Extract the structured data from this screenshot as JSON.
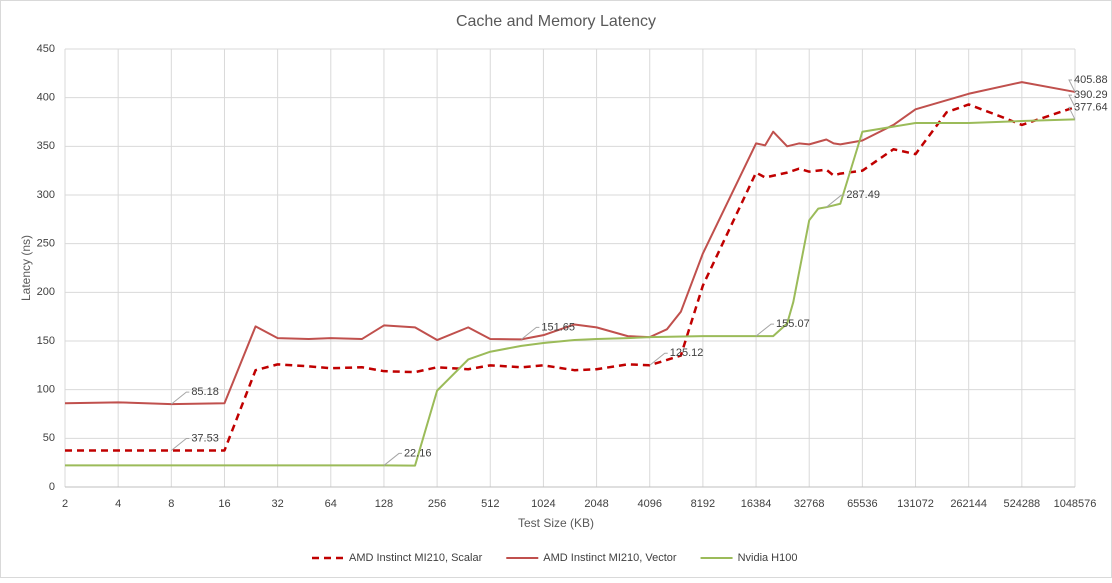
{
  "chart_data": {
    "type": "line",
    "title": "Cache and Memory Latency",
    "x_label": "Test Size (KB)",
    "y_label": "Latency (ns)",
    "xscale": "log2",
    "xlim": [
      2,
      1048576
    ],
    "xticks": [
      2,
      4,
      8,
      16,
      32,
      64,
      128,
      256,
      512,
      1024,
      2048,
      4096,
      8192,
      16384,
      32768,
      65536,
      131072,
      262144,
      524288,
      1048576
    ],
    "ylim": [
      0,
      450
    ],
    "yticks": [
      0,
      50,
      100,
      150,
      200,
      250,
      300,
      350,
      400,
      450
    ],
    "grid": true,
    "legend": "bottom",
    "series": [
      {
        "name": "AMD Instinct MI210, Scalar",
        "color": "#c00000",
        "dash": true,
        "x": [
          2,
          4,
          8,
          16,
          24,
          32,
          48,
          64,
          96,
          128,
          192,
          256,
          384,
          512,
          768,
          1024,
          1536,
          2048,
          3072,
          4096,
          6144,
          8192,
          16384,
          18432,
          24576,
          28672,
          32768,
          40960,
          45056,
          49152,
          65536,
          98304,
          131072,
          196608,
          262144,
          393216,
          524288,
          1048576
        ],
        "values": [
          37.53,
          37.53,
          37.53,
          37.53,
          120,
          126,
          124,
          122,
          123,
          119,
          118,
          123,
          121,
          125,
          123,
          125,
          120,
          121,
          126,
          125.12,
          135,
          207,
          323,
          318,
          323,
          327,
          324,
          326,
          320,
          322,
          325,
          347,
          342,
          385,
          393,
          381,
          372,
          390.29
        ],
        "value_labels": [
          null,
          null,
          "37.53",
          null,
          null,
          null,
          null,
          null,
          null,
          null,
          null,
          null,
          null,
          null,
          null,
          null,
          null,
          null,
          null,
          "125.12",
          null,
          null,
          null,
          null,
          null,
          null,
          null,
          null,
          null,
          null,
          null,
          null,
          null,
          null,
          null,
          null,
          null,
          "390.29"
        ]
      },
      {
        "name": "AMD Instinct MI210, Vector",
        "color": "#c0504d",
        "dash": false,
        "x": [
          2,
          4,
          8,
          16,
          24,
          32,
          48,
          64,
          96,
          128,
          192,
          256,
          384,
          512,
          768,
          1024,
          1536,
          2048,
          3072,
          4096,
          5120,
          6144,
          8192,
          16384,
          18432,
          20480,
          24576,
          28672,
          32768,
          40960,
          45056,
          49152,
          65536,
          98304,
          131072,
          262144,
          524288,
          1048576
        ],
        "values": [
          86,
          87,
          85.18,
          86,
          165,
          153,
          152,
          153,
          152,
          166,
          164,
          151,
          164,
          152,
          151.65,
          156,
          167,
          164,
          155,
          154,
          162,
          180,
          240,
          353,
          351,
          365,
          350,
          353,
          352,
          357,
          353,
          352,
          356,
          372,
          388,
          404,
          416,
          405.88
        ],
        "value_labels": [
          null,
          null,
          "85.18",
          null,
          null,
          null,
          null,
          null,
          null,
          null,
          null,
          null,
          null,
          null,
          "151.65",
          null,
          null,
          null,
          null,
          null,
          null,
          null,
          null,
          null,
          null,
          null,
          null,
          null,
          null,
          null,
          null,
          null,
          null,
          null,
          null,
          null,
          null,
          "405.88"
        ]
      },
      {
        "name": "Nvidia H100",
        "color": "#9bbb59",
        "dash": false,
        "x": [
          2,
          4,
          8,
          16,
          32,
          64,
          128,
          192,
          256,
          384,
          512,
          768,
          1024,
          1536,
          2048,
          3072,
          4096,
          8192,
          16384,
          20480,
          24576,
          26624,
          32768,
          36864,
          40960,
          49152,
          65536,
          131072,
          262144,
          524288,
          1048576
        ],
        "values": [
          22.16,
          22.16,
          22.16,
          22.16,
          22.16,
          22.16,
          22.16,
          22,
          99,
          131,
          139,
          145,
          148,
          151,
          152,
          153,
          154,
          155,
          155.07,
          155,
          168,
          190,
          274,
          286,
          287.49,
          291,
          365,
          374,
          374,
          376,
          377.64
        ],
        "value_labels": [
          null,
          null,
          null,
          null,
          null,
          null,
          "22.16",
          null,
          null,
          null,
          null,
          null,
          null,
          null,
          null,
          null,
          null,
          null,
          "155.07",
          null,
          null,
          null,
          null,
          null,
          "287.49",
          null,
          null,
          null,
          null,
          null,
          "377.64"
        ]
      }
    ]
  }
}
